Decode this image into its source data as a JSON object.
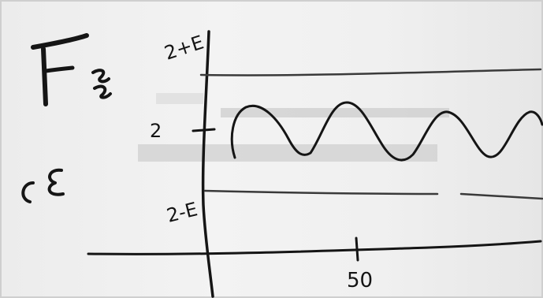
{
  "left_labels": {
    "force_letter": "F",
    "ce_label": "CE"
  },
  "axis_labels": {
    "upper": "2+E",
    "middle": "2",
    "lower": "2-E",
    "tick": "50"
  },
  "colors": {
    "ink": "#151515",
    "board": "#f1f1f1",
    "smudge": "#c9c9c9"
  }
}
